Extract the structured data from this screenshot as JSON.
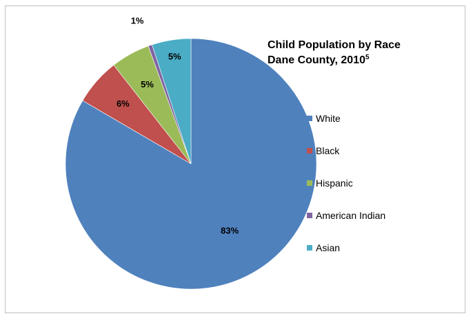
{
  "chart_data": {
    "type": "pie",
    "title_line1": "Child Population by Race",
    "title_line2": "Dane County, 2010",
    "title_superscript": "5",
    "legend_position": "right",
    "slices": [
      {
        "name": "White",
        "value": 83,
        "label": "83%",
        "color": "#4f81bd"
      },
      {
        "name": "Black",
        "value": 6,
        "label": "6%",
        "color": "#c0504d"
      },
      {
        "name": "Hispanic",
        "value": 5,
        "label": "5%",
        "color": "#9bbb59"
      },
      {
        "name": "American Indian",
        "value": 0.5,
        "label": "1%",
        "color": "#8064a2"
      },
      {
        "name": "Asian",
        "value": 5,
        "label": "5%",
        "color": "#4bacc6"
      }
    ]
  }
}
